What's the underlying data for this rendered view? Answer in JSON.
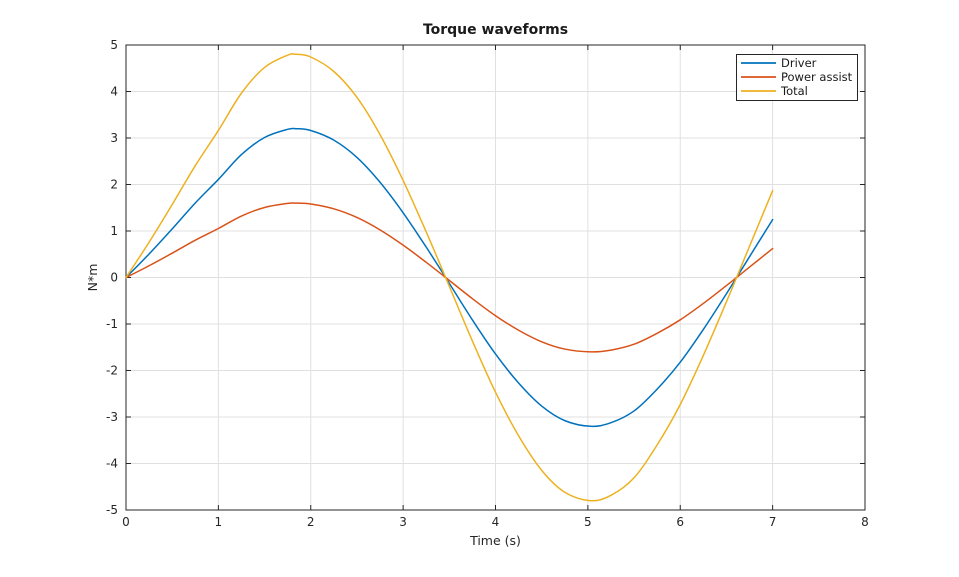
{
  "chart_data": {
    "type": "line",
    "title": "Torque waveforms",
    "xlabel": "Time (s)",
    "ylabel": "N*m",
    "xlim": [
      0,
      8
    ],
    "ylim": [
      -5,
      5
    ],
    "xticks": [
      0,
      1,
      2,
      3,
      4,
      5,
      6,
      7,
      8
    ],
    "yticks": [
      -5,
      -4,
      -3,
      -2,
      -1,
      0,
      1,
      2,
      3,
      4,
      5
    ],
    "grid": true,
    "background_color": "#ffffff",
    "axis_color": "#262626",
    "grid_color": "#e0e0e0",
    "legend": {
      "position": "top-right",
      "entries": [
        "Driver",
        "Power assist",
        "Total"
      ]
    },
    "x": [
      0,
      0.25,
      0.5,
      0.75,
      1,
      1.25,
      1.5,
      1.75,
      1.84,
      2,
      2.25,
      2.5,
      2.75,
      3,
      3.25,
      3.46,
      3.75,
      4,
      4.25,
      4.5,
      4.75,
      5.03,
      5.25,
      5.5,
      5.75,
      6,
      6.25,
      6.5,
      6.61,
      6.75,
      7
    ],
    "series": [
      {
        "name": "Driver",
        "color": "#0072BD",
        "values": [
          0,
          0.506,
          1.046,
          1.603,
          2.109,
          2.643,
          3.011,
          3.187,
          3.2,
          3.162,
          2.954,
          2.582,
          2.048,
          1.392,
          0.653,
          0,
          -0.912,
          -1.645,
          -2.269,
          -2.765,
          -3.078,
          -3.2,
          -3.123,
          -2.87,
          -2.4,
          -1.821,
          -1.117,
          -0.349,
          0,
          0.448,
          1.245
        ]
      },
      {
        "name": "Power assist",
        "color": "#D95319",
        "values": [
          0,
          0.253,
          0.523,
          0.802,
          1.054,
          1.322,
          1.506,
          1.594,
          1.6,
          1.581,
          1.477,
          1.291,
          1.024,
          0.696,
          0.326,
          0,
          -0.456,
          -0.822,
          -1.134,
          -1.382,
          -1.539,
          -1.6,
          -1.562,
          -1.435,
          -1.2,
          -0.91,
          -0.558,
          -0.174,
          0,
          0.224,
          0.622
        ]
      },
      {
        "name": "Total",
        "color": "#EDB120",
        "values": [
          0,
          0.758,
          1.57,
          2.405,
          3.163,
          3.965,
          4.517,
          4.781,
          4.8,
          4.742,
          4.43,
          3.874,
          3.072,
          2.088,
          0.979,
          0,
          -1.368,
          -2.467,
          -3.403,
          -4.147,
          -4.618,
          -4.8,
          -4.685,
          -4.306,
          -3.6,
          -2.731,
          -1.675,
          -0.523,
          0,
          0.672,
          1.867
        ]
      }
    ]
  }
}
